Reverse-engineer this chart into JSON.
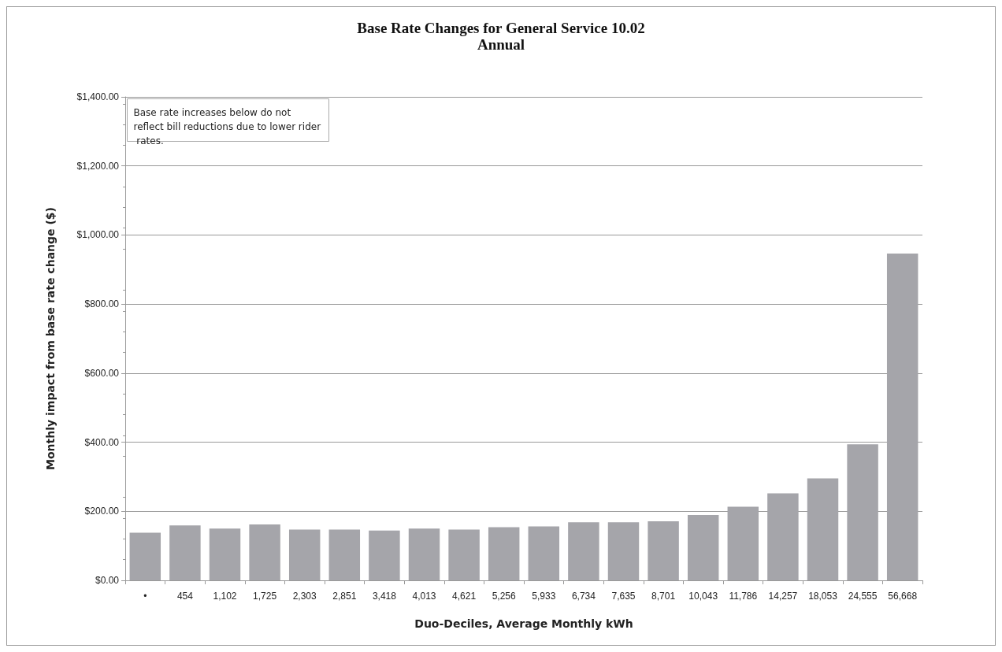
{
  "chart_data": {
    "type": "bar",
    "title": "Base Rate Changes for General Service 10.02",
    "subtitle": "Annual",
    "xlabel": "Duo-Deciles, Average Monthly kWh",
    "ylabel": "Monthly impact from base rate change ($)",
    "categories": [
      "•",
      "454",
      "1,102",
      "1,725",
      "2,303",
      "2,851",
      "3,418",
      "4,013",
      "4,621",
      "5,256",
      "5,933",
      "6,734",
      "7,635",
      "8,701",
      "10,043",
      "11,786",
      "14,257",
      "18,053",
      "24,555",
      "56,668"
    ],
    "values": [
      138,
      159,
      150,
      162,
      147,
      147,
      144,
      150,
      147,
      154,
      156,
      168,
      168,
      171,
      189,
      213,
      252,
      295,
      394,
      946
    ],
    "color": "#a5a5aa",
    "ylim": [
      0,
      1400
    ],
    "yticks": [
      {
        "value": 0,
        "label": "$0.00"
      },
      {
        "value": 200,
        "label": "$200.00"
      },
      {
        "value": 400,
        "label": "$400.00"
      },
      {
        "value": 600,
        "label": "$600.00"
      },
      {
        "value": 800,
        "label": "$800.00"
      },
      {
        "value": 1000,
        "label": "$1,000.00"
      },
      {
        "value": 1200,
        "label": "$1,200.00"
      },
      {
        "value": 1400,
        "label": "$1,400.00"
      }
    ],
    "grid": "y",
    "annotations": [
      "Base rate increases below do not reflect bill reductions due to lower rider rates."
    ]
  }
}
